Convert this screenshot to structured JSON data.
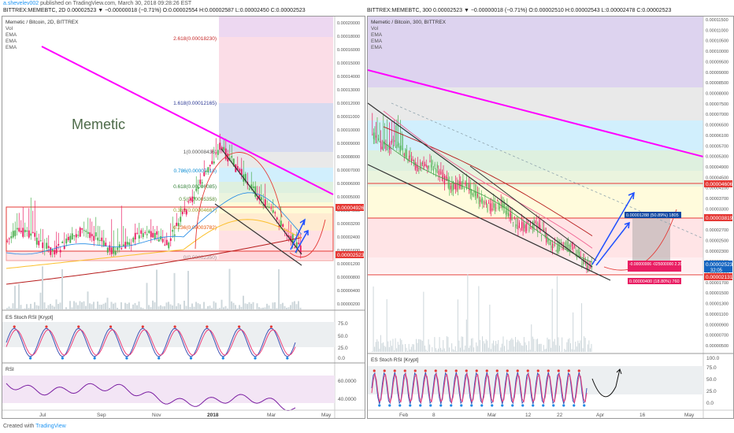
{
  "header": {
    "author": "a.shevelev002",
    "published": "published on TradingView.com, March 30, 2018 09:28:26 EST",
    "left_ohlc": "BITTREX:MEMEBTC, 2D  0.00002523 ▼ −0.00000018 (−0.71%)  O:0.00002554  H:0.00002587  L:0.00002450  C:0.00002523",
    "right_ohlc": "BITTREX:MEMEBTC, 300  0.00002523 ▼ −0.00000018 (−0.71%)  O:0.00002510  H:0.00002543  L:0.00002478  C:0.00002523"
  },
  "footer": {
    "created": "Created with",
    "brand": "TradingView"
  },
  "colors": {
    "fib_line": "#ff00ff",
    "price_red": "#e53935",
    "candle_up": "#4caf50",
    "candle_down": "#e91e63",
    "arrow": "#1e4fff",
    "rsi": "#7b1fa2",
    "stoch_k": "#3f51b5",
    "stoch_d": "#ec407a"
  },
  "chart_data": [
    {
      "type": "line",
      "title": "",
      "legend": [
        "Memetic / Bitcoin, 2D, BITTREX",
        "Vol",
        "EMA",
        "EMA",
        "EMA"
      ],
      "annotation": "Memetic",
      "xlabels": [
        "Jul",
        "Sep",
        "Nov",
        "2018",
        "Mar",
        "May"
      ],
      "ylabels": [
        "0.00020000",
        "0.00018000",
        "0.00016000",
        "0.00015000",
        "0.00014000",
        "0.00013000",
        "0.00012000",
        "0.00011000",
        "0.00010000",
        "0.00009000",
        "0.00008000",
        "0.00007000",
        "0.00006000",
        "0.00005000",
        "0.00004000",
        "0.00003200",
        "0.00002400",
        "0.00001600",
        "0.00001200",
        "0.00000800",
        "0.00000400",
        "0.00000200"
      ],
      "price_tags": [
        "0.00004926",
        "0.00002523"
      ],
      "fib_levels": [
        {
          "label": "2.618(0.00018230)",
          "value": 0.0001823
        },
        {
          "label": "1.618(0.00012165)",
          "value": 0.00012165
        },
        {
          "label": "1(0.00008436)",
          "value": 8.436e-05
        },
        {
          "label": "0.786(0.00007118)",
          "value": 7.118e-05
        },
        {
          "label": "0.618(0.00006085)",
          "value": 6.085e-05
        },
        {
          "label": "0.5(0.00005358)",
          "value": 5.358e-05
        },
        {
          "label": "0.382(0.00004667)",
          "value": 4.667e-05
        },
        {
          "label": "0.236(0.00003782)",
          "value": 3.782e-05
        },
        {
          "label": "0(0.00002350)",
          "value": 2.35e-05
        }
      ],
      "stoch_rsi": {
        "label": "ES Stoch RSI [Krypt]",
        "ticks": [
          "75.0",
          "50.0",
          "25.0",
          "0.0"
        ]
      },
      "rsi": {
        "label": "RSI",
        "ticks": [
          "60.0000",
          "40.0000"
        ]
      }
    },
    {
      "type": "line",
      "title": "",
      "legend": [
        "Memetic / Bitcoin, 300, BITTREX",
        "Vol",
        "EMA",
        "EMA",
        "EMA"
      ],
      "xlabels": [
        "Feb",
        "8",
        "Mar",
        "12",
        "22",
        "Apr",
        "16",
        "May"
      ],
      "ylabels": [
        "0.00011500",
        "0.00011000",
        "0.00010500",
        "0.00010000",
        "0.00009500",
        "0.00009000",
        "0.00008500",
        "0.00008000",
        "0.00007500",
        "0.00007000",
        "0.00006500",
        "0.00006100",
        "0.00005700",
        "0.00005300",
        "0.00004900",
        "0.00004500",
        "0.00004100",
        "0.00003700",
        "0.00003300",
        "0.00002900",
        "0.00002700",
        "0.00002500",
        "0.00002300",
        "0.00002100",
        "0.00001900",
        "0.00001700",
        "0.00001500",
        "0.00001300",
        "0.00001100",
        "0.00000900",
        "0.00000700",
        "0.00000500"
      ],
      "price_tags": [
        "0.00004606",
        "0.00003819",
        "0.00002523",
        "0.00002131"
      ],
      "countdown": "32:05",
      "measure_up": "0.00001288 (50.89%) 1805",
      "measure_mid": "-0.00000006 -025000000 2.20",
      "measure_low": "0.00000400 (18.80%) 760",
      "stoch_rsi": {
        "label": "ES Stoch RSI [Krypt]",
        "ticks": [
          "100.0",
          "75.0",
          "50.0",
          "25.0",
          "0.0"
        ]
      }
    }
  ]
}
